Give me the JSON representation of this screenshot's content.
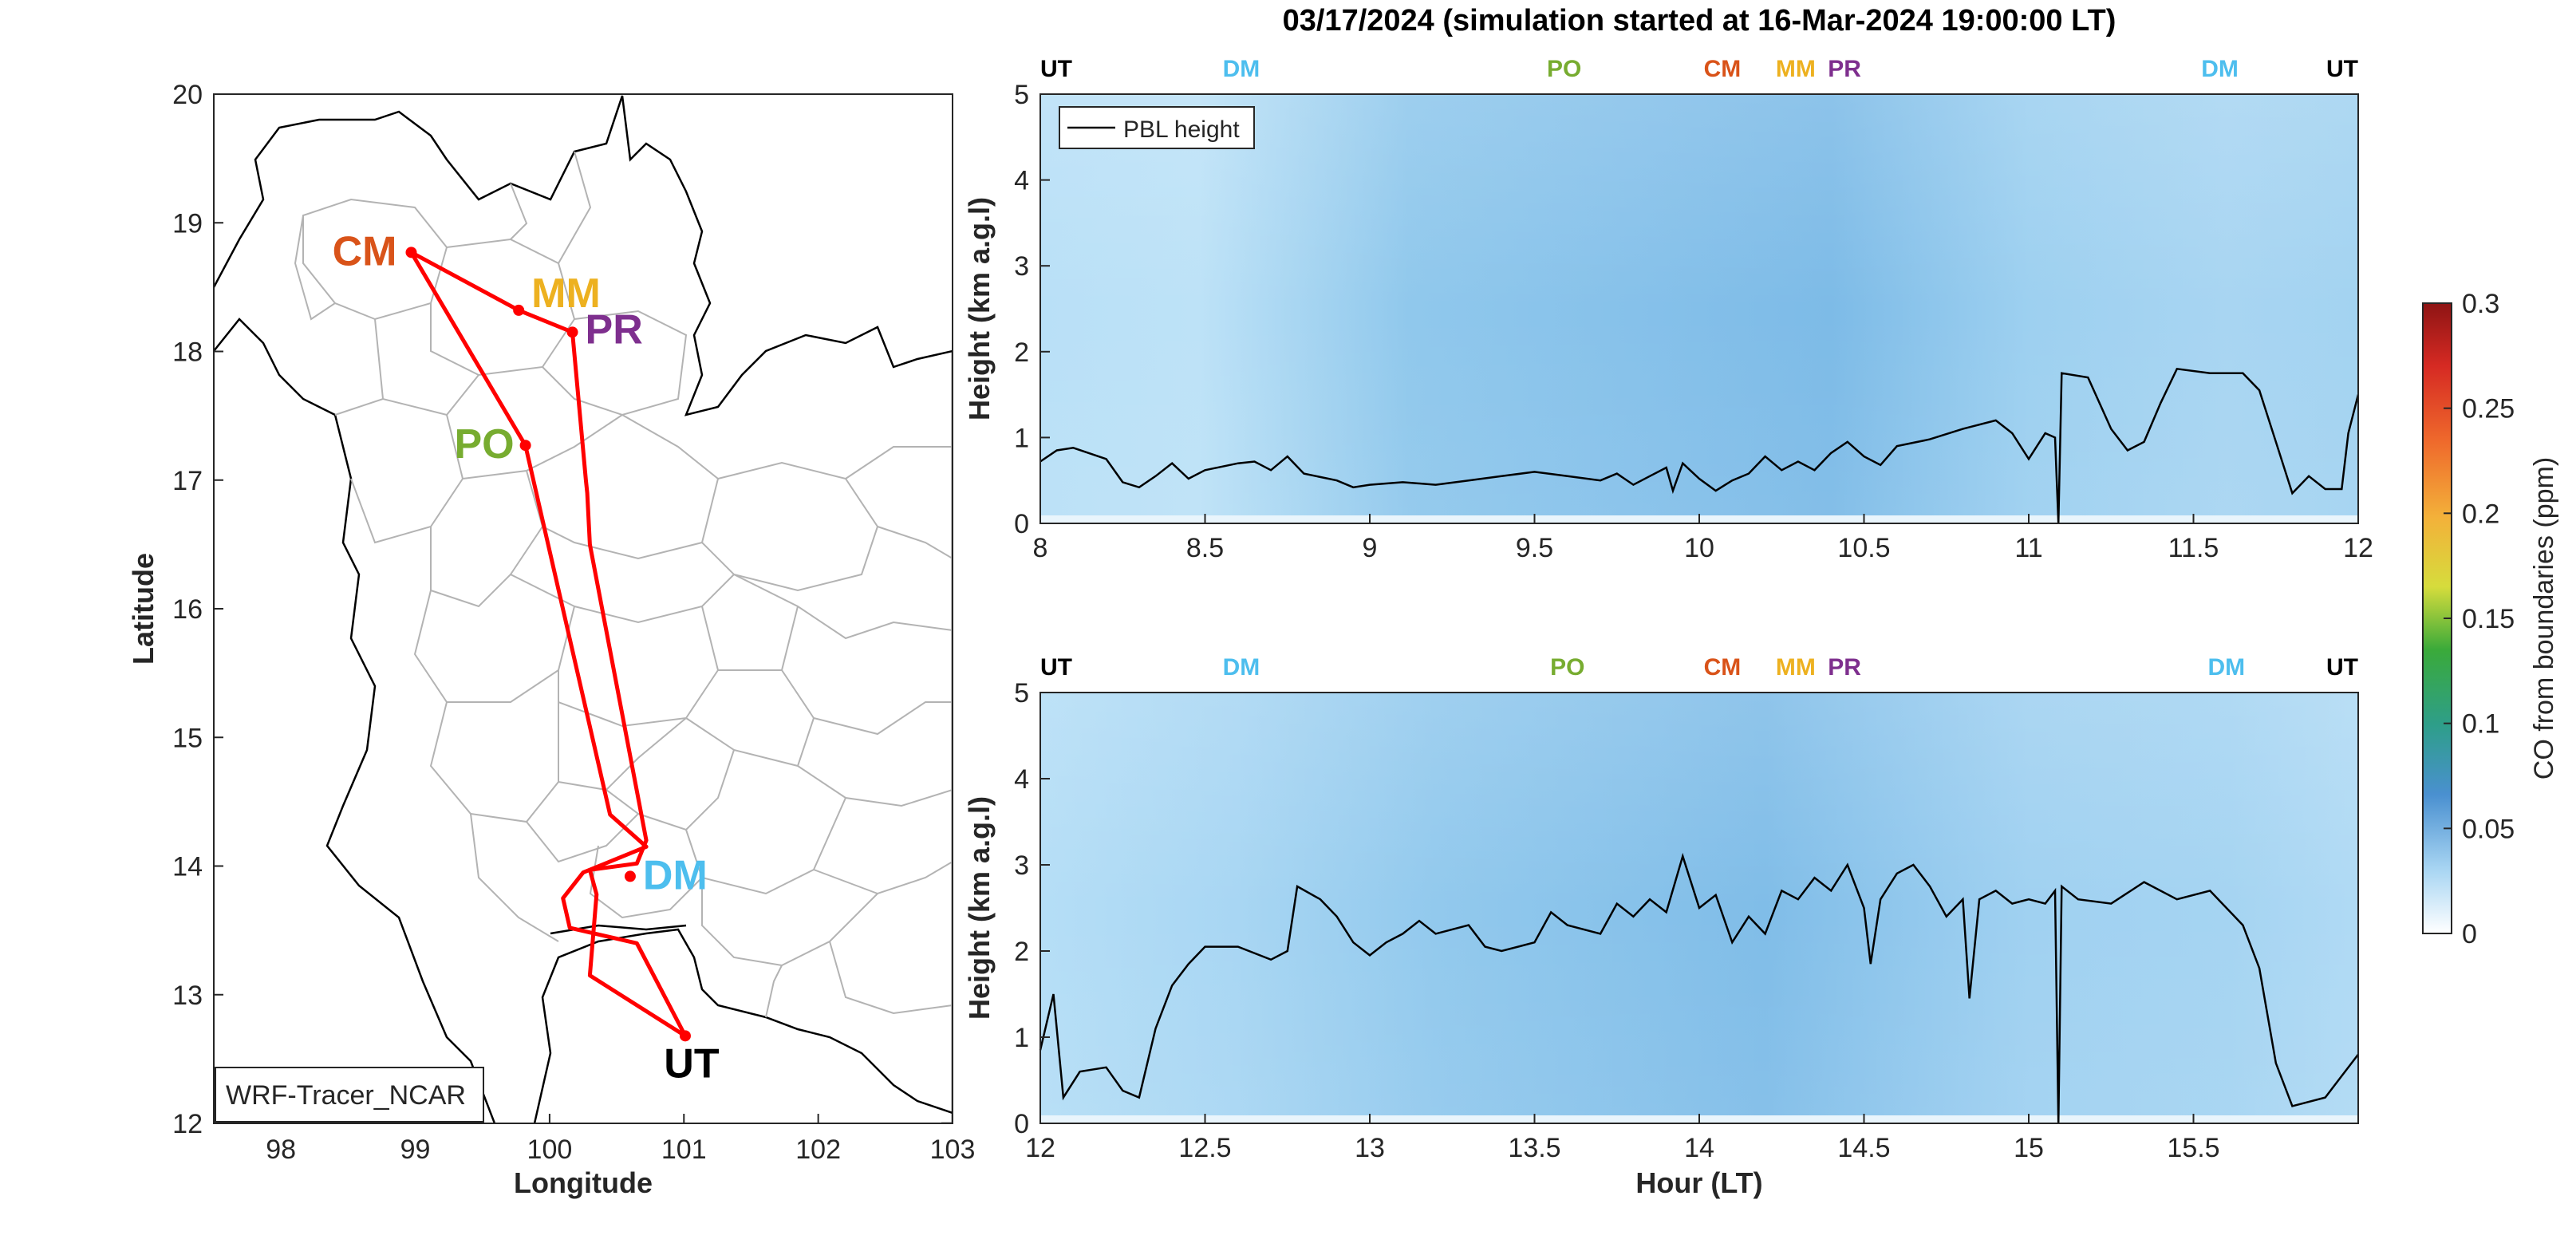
{
  "figure": {
    "title": "03/17/2024 (simulation started at 16-Mar-2024 19:00:00 LT)",
    "colors": {
      "UT": "#000000",
      "DM": "#4DBEEE",
      "PO": "#77AC30",
      "CM": "#D95319",
      "MM": "#EDB120",
      "PR": "#7E2F8E",
      "route": "#ff0000",
      "pbl": "#000000"
    }
  },
  "chart_data": [
    {
      "type": "map",
      "xlabel": "Longitude",
      "ylabel": "Latitude",
      "xlim": [
        97.5,
        103
      ],
      "ylim": [
        12,
        20
      ],
      "xticks": [
        "98",
        "99",
        "100",
        "101",
        "102",
        "103"
      ],
      "yticks": [
        "12",
        "13",
        "14",
        "15",
        "16",
        "17",
        "18",
        "19",
        "20"
      ],
      "legend_label": "WRF-Tracer_NCAR",
      "stations": [
        {
          "name": "CM",
          "lon": 98.97,
          "lat": 18.77
        },
        {
          "name": "MM",
          "lon": 99.77,
          "lat": 18.32
        },
        {
          "name": "PR",
          "lon": 100.17,
          "lat": 18.15
        },
        {
          "name": "PO",
          "lon": 99.82,
          "lat": 17.27
        },
        {
          "name": "DM",
          "lon": 100.6,
          "lat": 13.92
        },
        {
          "name": "UT",
          "lon": 101.01,
          "lat": 12.68
        }
      ],
      "route": [
        [
          101.01,
          12.68
        ],
        [
          100.3,
          13.15
        ],
        [
          100.35,
          13.78
        ],
        [
          100.3,
          13.97
        ],
        [
          100.65,
          14.02
        ],
        [
          100.72,
          14.2
        ],
        [
          100.3,
          16.5
        ],
        [
          100.28,
          16.9
        ],
        [
          100.27,
          17.0
        ],
        [
          100.17,
          18.15
        ],
        [
          99.77,
          18.32
        ],
        [
          98.97,
          18.77
        ],
        [
          99.82,
          17.27
        ],
        [
          100.45,
          14.4
        ],
        [
          100.72,
          14.15
        ],
        [
          100.25,
          13.95
        ],
        [
          100.1,
          13.75
        ],
        [
          100.15,
          13.52
        ],
        [
          100.65,
          13.4
        ],
        [
          101.01,
          12.68
        ]
      ]
    },
    {
      "type": "heatmap",
      "ylabel": "Height (km a.g.l)",
      "xlim": [
        8,
        12
      ],
      "ylim": [
        0,
        5
      ],
      "xticks": [
        "8",
        "8.5",
        "9",
        "9.5",
        "10",
        "10.5",
        "11",
        "11.5",
        "12"
      ],
      "yticks": [
        "0",
        "1",
        "2",
        "3",
        "4",
        "5"
      ],
      "legend_label": "PBL height",
      "stop_labels": [
        {
          "name": "UT",
          "x": 8.0
        },
        {
          "name": "DM",
          "x": 8.61
        },
        {
          "name": "PO",
          "x": 9.59
        },
        {
          "name": "CM",
          "x": 10.07
        },
        {
          "name": "MM",
          "x": 10.3
        },
        {
          "name": "PR",
          "x": 10.4
        },
        {
          "name": "DM",
          "x": 11.58
        },
        {
          "name": "UT",
          "x": 12.0
        }
      ],
      "pbl": [
        [
          8.0,
          0.72
        ],
        [
          8.05,
          0.85
        ],
        [
          8.1,
          0.88
        ],
        [
          8.2,
          0.75
        ],
        [
          8.25,
          0.48
        ],
        [
          8.3,
          0.42
        ],
        [
          8.35,
          0.55
        ],
        [
          8.4,
          0.7
        ],
        [
          8.45,
          0.52
        ],
        [
          8.5,
          0.62
        ],
        [
          8.6,
          0.7
        ],
        [
          8.65,
          0.72
        ],
        [
          8.7,
          0.62
        ],
        [
          8.75,
          0.78
        ],
        [
          8.8,
          0.58
        ],
        [
          8.9,
          0.5
        ],
        [
          8.95,
          0.42
        ],
        [
          9.0,
          0.45
        ],
        [
          9.1,
          0.48
        ],
        [
          9.2,
          0.45
        ],
        [
          9.3,
          0.5
        ],
        [
          9.4,
          0.55
        ],
        [
          9.5,
          0.6
        ],
        [
          9.6,
          0.55
        ],
        [
          9.7,
          0.5
        ],
        [
          9.75,
          0.58
        ],
        [
          9.8,
          0.45
        ],
        [
          9.85,
          0.55
        ],
        [
          9.9,
          0.65
        ],
        [
          9.92,
          0.38
        ],
        [
          9.95,
          0.7
        ],
        [
          10.0,
          0.52
        ],
        [
          10.05,
          0.38
        ],
        [
          10.1,
          0.5
        ],
        [
          10.15,
          0.58
        ],
        [
          10.2,
          0.78
        ],
        [
          10.25,
          0.62
        ],
        [
          10.3,
          0.72
        ],
        [
          10.35,
          0.62
        ],
        [
          10.4,
          0.82
        ],
        [
          10.45,
          0.95
        ],
        [
          10.5,
          0.78
        ],
        [
          10.55,
          0.68
        ],
        [
          10.6,
          0.9
        ],
        [
          10.7,
          0.98
        ],
        [
          10.8,
          1.1
        ],
        [
          10.9,
          1.2
        ],
        [
          10.95,
          1.05
        ],
        [
          11.0,
          0.75
        ],
        [
          11.05,
          1.05
        ],
        [
          11.08,
          1.0
        ],
        [
          11.09,
          0.0
        ],
        [
          11.1,
          1.75
        ],
        [
          11.18,
          1.7
        ],
        [
          11.25,
          1.1
        ],
        [
          11.3,
          0.85
        ],
        [
          11.35,
          0.95
        ],
        [
          11.4,
          1.4
        ],
        [
          11.45,
          1.8
        ],
        [
          11.55,
          1.75
        ],
        [
          11.65,
          1.75
        ],
        [
          11.7,
          1.55
        ],
        [
          11.75,
          0.95
        ],
        [
          11.8,
          0.35
        ],
        [
          11.85,
          0.55
        ],
        [
          11.9,
          0.4
        ],
        [
          11.95,
          0.4
        ],
        [
          11.97,
          1.05
        ],
        [
          12.0,
          1.5
        ]
      ]
    },
    {
      "type": "heatmap",
      "xlabel": "Hour (LT)",
      "ylabel": "Height (km a.g.l)",
      "xlim": [
        12,
        16
      ],
      "ylim": [
        0,
        5
      ],
      "xticks": [
        "12",
        "12.5",
        "13",
        "13.5",
        "14",
        "14.5",
        "15",
        "15.5"
      ],
      "yticks": [
        "0",
        "1",
        "2",
        "3",
        "4",
        "5"
      ],
      "stop_labels": [
        {
          "name": "UT",
          "x": 12.0
        },
        {
          "name": "DM",
          "x": 12.61
        },
        {
          "name": "PO",
          "x": 13.6
        },
        {
          "name": "CM",
          "x": 14.07
        },
        {
          "name": "MM",
          "x": 14.3
        },
        {
          "name": "PR",
          "x": 14.4
        },
        {
          "name": "DM",
          "x": 15.6
        },
        {
          "name": "UT",
          "x": 16.0
        }
      ],
      "pbl": [
        [
          12.0,
          0.85
        ],
        [
          12.04,
          1.5
        ],
        [
          12.07,
          0.3
        ],
        [
          12.12,
          0.6
        ],
        [
          12.2,
          0.65
        ],
        [
          12.25,
          0.38
        ],
        [
          12.3,
          0.3
        ],
        [
          12.35,
          1.1
        ],
        [
          12.4,
          1.6
        ],
        [
          12.45,
          1.85
        ],
        [
          12.5,
          2.05
        ],
        [
          12.6,
          2.05
        ],
        [
          12.7,
          1.9
        ],
        [
          12.75,
          2.0
        ],
        [
          12.78,
          2.75
        ],
        [
          12.85,
          2.6
        ],
        [
          12.9,
          2.4
        ],
        [
          12.95,
          2.1
        ],
        [
          13.0,
          1.95
        ],
        [
          13.05,
          2.1
        ],
        [
          13.1,
          2.2
        ],
        [
          13.15,
          2.35
        ],
        [
          13.2,
          2.2
        ],
        [
          13.3,
          2.3
        ],
        [
          13.35,
          2.05
        ],
        [
          13.4,
          2.0
        ],
        [
          13.5,
          2.1
        ],
        [
          13.55,
          2.45
        ],
        [
          13.6,
          2.3
        ],
        [
          13.7,
          2.2
        ],
        [
          13.75,
          2.55
        ],
        [
          13.8,
          2.4
        ],
        [
          13.85,
          2.6
        ],
        [
          13.9,
          2.45
        ],
        [
          13.95,
          3.1
        ],
        [
          14.0,
          2.5
        ],
        [
          14.05,
          2.65
        ],
        [
          14.1,
          2.1
        ],
        [
          14.15,
          2.4
        ],
        [
          14.2,
          2.2
        ],
        [
          14.25,
          2.7
        ],
        [
          14.3,
          2.6
        ],
        [
          14.35,
          2.85
        ],
        [
          14.4,
          2.7
        ],
        [
          14.45,
          3.0
        ],
        [
          14.5,
          2.5
        ],
        [
          14.52,
          1.85
        ],
        [
          14.55,
          2.6
        ],
        [
          14.6,
          2.9
        ],
        [
          14.65,
          3.0
        ],
        [
          14.7,
          2.75
        ],
        [
          14.75,
          2.4
        ],
        [
          14.8,
          2.6
        ],
        [
          14.82,
          1.45
        ],
        [
          14.85,
          2.6
        ],
        [
          14.9,
          2.7
        ],
        [
          14.95,
          2.55
        ],
        [
          15.0,
          2.6
        ],
        [
          15.05,
          2.55
        ],
        [
          15.08,
          2.7
        ],
        [
          15.09,
          0.0
        ],
        [
          15.1,
          2.75
        ],
        [
          15.15,
          2.6
        ],
        [
          15.25,
          2.55
        ],
        [
          15.35,
          2.8
        ],
        [
          15.45,
          2.6
        ],
        [
          15.55,
          2.7
        ],
        [
          15.6,
          2.5
        ],
        [
          15.65,
          2.3
        ],
        [
          15.7,
          1.8
        ],
        [
          15.75,
          0.7
        ],
        [
          15.8,
          0.2
        ],
        [
          15.9,
          0.3
        ],
        [
          15.95,
          0.55
        ],
        [
          16.0,
          0.8
        ]
      ]
    },
    {
      "type": "colorbar",
      "label": "CO from boundaries (ppm)",
      "range": [
        0,
        0.3
      ],
      "ticks": [
        "0",
        "0.05",
        "0.1",
        "0.15",
        "0.2",
        "0.25",
        "0.3"
      ]
    }
  ]
}
